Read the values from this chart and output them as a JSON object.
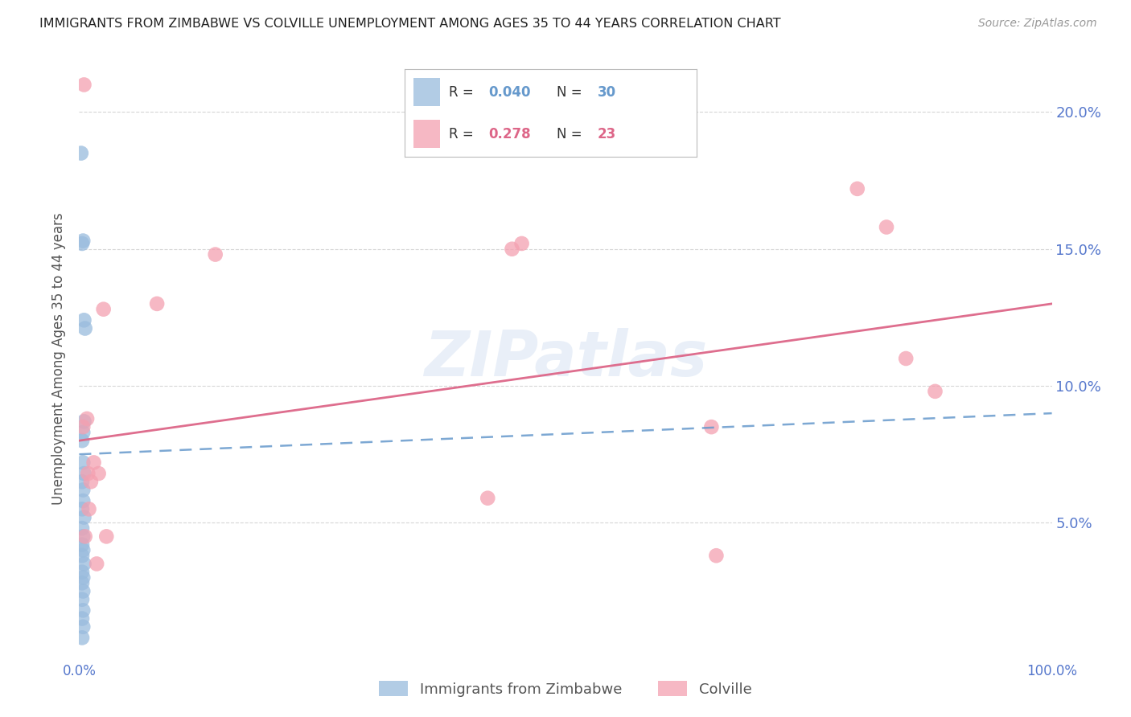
{
  "title": "IMMIGRANTS FROM ZIMBABWE VS COLVILLE UNEMPLOYMENT AMONG AGES 35 TO 44 YEARS CORRELATION CHART",
  "source": "Source: ZipAtlas.com",
  "ylabel": "Unemployment Among Ages 35 to 44 years",
  "xlim": [
    0,
    100
  ],
  "ylim": [
    0,
    22
  ],
  "blue_scatter_x": [
    0.2,
    0.3,
    0.4,
    0.5,
    0.6,
    0.5,
    0.4,
    0.3,
    0.4,
    0.5,
    0.3,
    0.4,
    0.4,
    0.3,
    0.5,
    0.3,
    0.4,
    0.3,
    0.4,
    0.3,
    0.5,
    0.3,
    0.4,
    0.3,
    0.4,
    0.3,
    0.4,
    0.3,
    0.4,
    0.3
  ],
  "blue_scatter_y": [
    18.5,
    15.2,
    15.3,
    12.4,
    12.1,
    8.7,
    8.3,
    8.0,
    7.2,
    6.8,
    6.5,
    6.2,
    5.8,
    5.5,
    5.2,
    4.8,
    4.5,
    4.2,
    4.0,
    3.8,
    3.5,
    3.2,
    3.0,
    2.8,
    2.5,
    2.2,
    1.8,
    1.5,
    1.2,
    0.8
  ],
  "pink_scatter_x": [
    0.5,
    0.8,
    1.0,
    1.2,
    1.5,
    2.0,
    2.5,
    2.8,
    8.0,
    14.0,
    42.0,
    44.5,
    45.5,
    65.0,
    65.5,
    80.0,
    83.0,
    85.0,
    88.0,
    0.4,
    0.6,
    0.9,
    1.8
  ],
  "pink_scatter_y": [
    21.0,
    8.8,
    5.5,
    6.5,
    7.2,
    6.8,
    12.8,
    4.5,
    13.0,
    14.8,
    5.9,
    15.0,
    15.2,
    8.5,
    3.8,
    17.2,
    15.8,
    11.0,
    9.8,
    8.5,
    4.5,
    6.8,
    3.5
  ],
  "blue_line_color": "#6699cc",
  "pink_line_color": "#dd6688",
  "scatter_blue_color": "#99bbdd",
  "scatter_pink_color": "#f4a0b0",
  "watermark_text": "ZIPatlas",
  "watermark_color": "#5588cc",
  "watermark_alpha": 0.13,
  "background_color": "#ffffff",
  "grid_color": "#cccccc",
  "title_color": "#222222",
  "axis_label_color": "#5577cc",
  "ylabel_color": "#555555",
  "legend_R_blue": "0.040",
  "legend_N_blue": "30",
  "legend_R_pink": "0.278",
  "legend_N_pink": "23",
  "legend_label_blue": "Immigrants from Zimbabwe",
  "legend_label_pink": "Colville"
}
